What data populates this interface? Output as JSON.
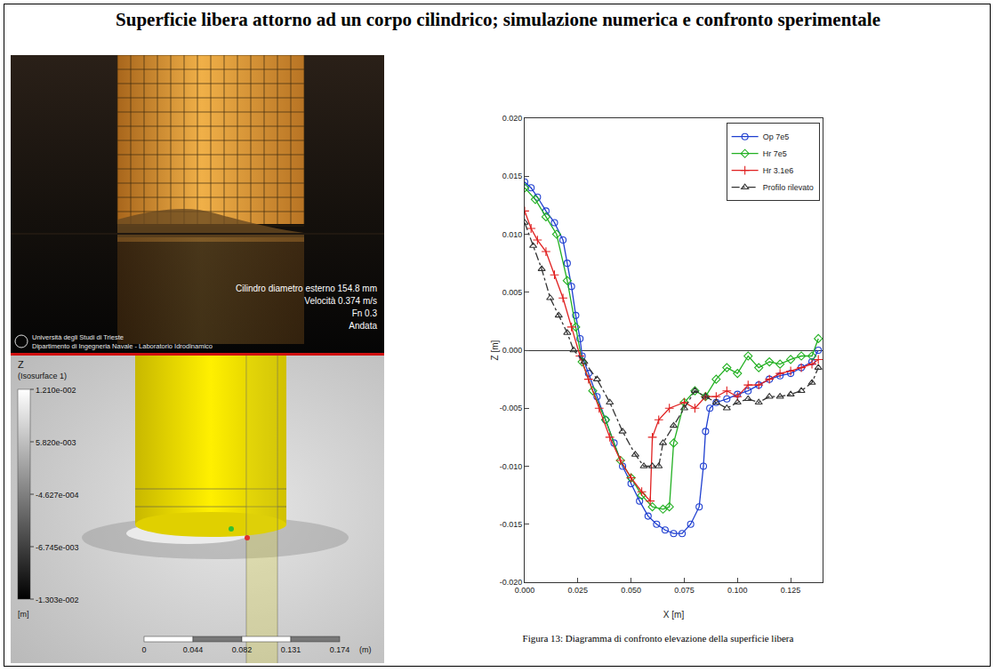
{
  "header": {
    "title": "Superficie libera attorno ad un corpo cilindrico; simulazione numerica e confronto sperimentale"
  },
  "photo": {
    "caption_lines": [
      "Cilindro diametro esterno 154.8 mm",
      "Velocità 0.374 m/s",
      "Fn 0.3",
      "Andata"
    ],
    "logo_lines": [
      "Università degli Studi di Trieste",
      "Dipartimento di Ingegneria Navale - Laboratorio Idrodinamico"
    ]
  },
  "simulation": {
    "colorbar_title": "Z",
    "colorbar_subtitle": "(Isosurface 1)",
    "colorbar_labels": [
      "1.210e-002",
      "5.820e-003",
      "-4.627e-004",
      "-6.745e-003",
      "-1.303e-002"
    ],
    "colorbar_unit": "[m]",
    "scale_labels": [
      "0",
      "0.044",
      "0.082",
      "0.131",
      "0.174"
    ],
    "scale_unit": "(m)"
  },
  "chart_data": {
    "type": "line",
    "x_label": "X [m]",
    "y_label": "Z [m]",
    "xlim": [
      0,
      0.14
    ],
    "xticks": [
      {
        "value": 0,
        "label": "0.000"
      },
      {
        "value": 0.025,
        "label": "0.025"
      },
      {
        "value": 0.05,
        "label": "0.050"
      },
      {
        "value": 0.075,
        "label": "0.075"
      },
      {
        "value": 0.1,
        "label": "0.100"
      },
      {
        "value": 0.125,
        "label": "0.125"
      }
    ],
    "ylim": [
      -0.02,
      0.02
    ],
    "yticks": [
      {
        "value": -0.02,
        "label": "-0.020"
      },
      {
        "value": -0.015,
        "label": "-0.015"
      },
      {
        "value": -0.01,
        "label": "-0.010"
      },
      {
        "value": -0.005,
        "label": "-0.005"
      },
      {
        "value": 0,
        "label": "0.000"
      },
      {
        "value": 0.005,
        "label": "0.005"
      },
      {
        "value": 0.01,
        "label": "0.010"
      },
      {
        "value": 0.015,
        "label": "0.015"
      },
      {
        "value": 0.02,
        "label": "0.020"
      }
    ],
    "grid": false,
    "legend": "top right",
    "series": [
      {
        "name": "Op 7e5",
        "color": "#1f3fd0",
        "marker": "circle-open",
        "line_style": "solid",
        "x": [
          0,
          0.003,
          0.006,
          0.01,
          0.014,
          0.018,
          0.02,
          0.022,
          0.024,
          0.026,
          0.027,
          0.03,
          0.034,
          0.038,
          0.042,
          0.046,
          0.05,
          0.054,
          0.058,
          0.062,
          0.066,
          0.07,
          0.074,
          0.078,
          0.082,
          0.084,
          0.085,
          0.087,
          0.09,
          0.095,
          0.1,
          0.105,
          0.11,
          0.115,
          0.12,
          0.125,
          0.13,
          0.135,
          0.138
        ],
        "values": [
          0.0145,
          0.014,
          0.0132,
          0.012,
          0.011,
          0.0095,
          0.0075,
          0.0055,
          0.003,
          0.001,
          -0.0005,
          -0.002,
          -0.004,
          -0.006,
          -0.008,
          -0.01,
          -0.0115,
          -0.013,
          -0.0143,
          -0.015,
          -0.0155,
          -0.0158,
          -0.0158,
          -0.015,
          -0.0135,
          -0.01,
          -0.007,
          -0.005,
          -0.0045,
          -0.0042,
          -0.0038,
          -0.0035,
          -0.003,
          -0.0025,
          -0.0022,
          -0.002,
          -0.0015,
          -0.001,
          0
        ]
      },
      {
        "name": "Hr 7e5",
        "color": "#22b022",
        "marker": "diamond-open",
        "line_style": "solid",
        "x": [
          0,
          0.005,
          0.01,
          0.015,
          0.02,
          0.024,
          0.027,
          0.032,
          0.038,
          0.045,
          0.05,
          0.055,
          0.06,
          0.065,
          0.068,
          0.07,
          0.075,
          0.08,
          0.085,
          0.09,
          0.095,
          0.1,
          0.105,
          0.11,
          0.115,
          0.12,
          0.125,
          0.13,
          0.135,
          0.138
        ],
        "values": [
          0.014,
          0.013,
          0.0115,
          0.01,
          0.006,
          0.002,
          -0.001,
          -0.0035,
          -0.006,
          -0.0095,
          -0.011,
          -0.0125,
          -0.0135,
          -0.0137,
          -0.0135,
          -0.008,
          -0.0045,
          -0.0035,
          -0.004,
          -0.0025,
          -0.0015,
          -0.002,
          -0.0005,
          -0.0015,
          -0.001,
          -0.0012,
          -0.0008,
          -0.0005,
          -0.0005,
          0.001
        ]
      },
      {
        "name": "Hr 3.1e6",
        "color": "#e02020",
        "marker": "cross-thin-open",
        "line_style": "solid",
        "x": [
          0,
          0.003,
          0.006,
          0.01,
          0.014,
          0.018,
          0.022,
          0.026,
          0.03,
          0.035,
          0.04,
          0.045,
          0.05,
          0.055,
          0.059,
          0.06,
          0.063,
          0.068,
          0.075,
          0.08,
          0.085,
          0.09,
          0.095,
          0.1,
          0.105,
          0.11,
          0.115,
          0.12,
          0.125,
          0.13,
          0.135,
          0.138
        ],
        "values": [
          0.012,
          0.0105,
          0.0095,
          0.0085,
          0.0065,
          0.0045,
          0.002,
          -0.0005,
          -0.0025,
          -0.005,
          -0.0075,
          -0.0095,
          -0.011,
          -0.0122,
          -0.013,
          -0.0075,
          -0.006,
          -0.005,
          -0.0045,
          -0.005,
          -0.004,
          -0.004,
          -0.0035,
          -0.004,
          -0.003,
          -0.003,
          -0.0025,
          -0.002,
          -0.0018,
          -0.0015,
          -0.0012,
          -0.0008
        ]
      },
      {
        "name": "Profilo rilevato",
        "color": "#333333",
        "marker": "triangle-up-open",
        "line_style": "dashdot",
        "x": [
          0,
          0.004,
          0.008,
          0.012,
          0.016,
          0.02,
          0.023,
          0.028,
          0.034,
          0.04,
          0.046,
          0.052,
          0.056,
          0.06,
          0.063,
          0.065,
          0.07,
          0.075,
          0.08,
          0.085,
          0.09,
          0.095,
          0.1,
          0.105,
          0.11,
          0.115,
          0.12,
          0.125,
          0.13,
          0.135,
          0.138
        ],
        "values": [
          0.011,
          0.009,
          0.007,
          0.0045,
          0.003,
          0.0015,
          0,
          -0.001,
          -0.0025,
          -0.0045,
          -0.007,
          -0.009,
          -0.01,
          -0.01,
          -0.01,
          -0.008,
          -0.0065,
          -0.005,
          -0.0035,
          -0.004,
          -0.0045,
          -0.005,
          -0.0045,
          -0.0042,
          -0.0045,
          -0.004,
          -0.004,
          -0.0038,
          -0.0035,
          -0.0028,
          -0.0015
        ]
      }
    ]
  },
  "caption": "Figura 13: Diagramma di confronto elevazione della superficie libera"
}
